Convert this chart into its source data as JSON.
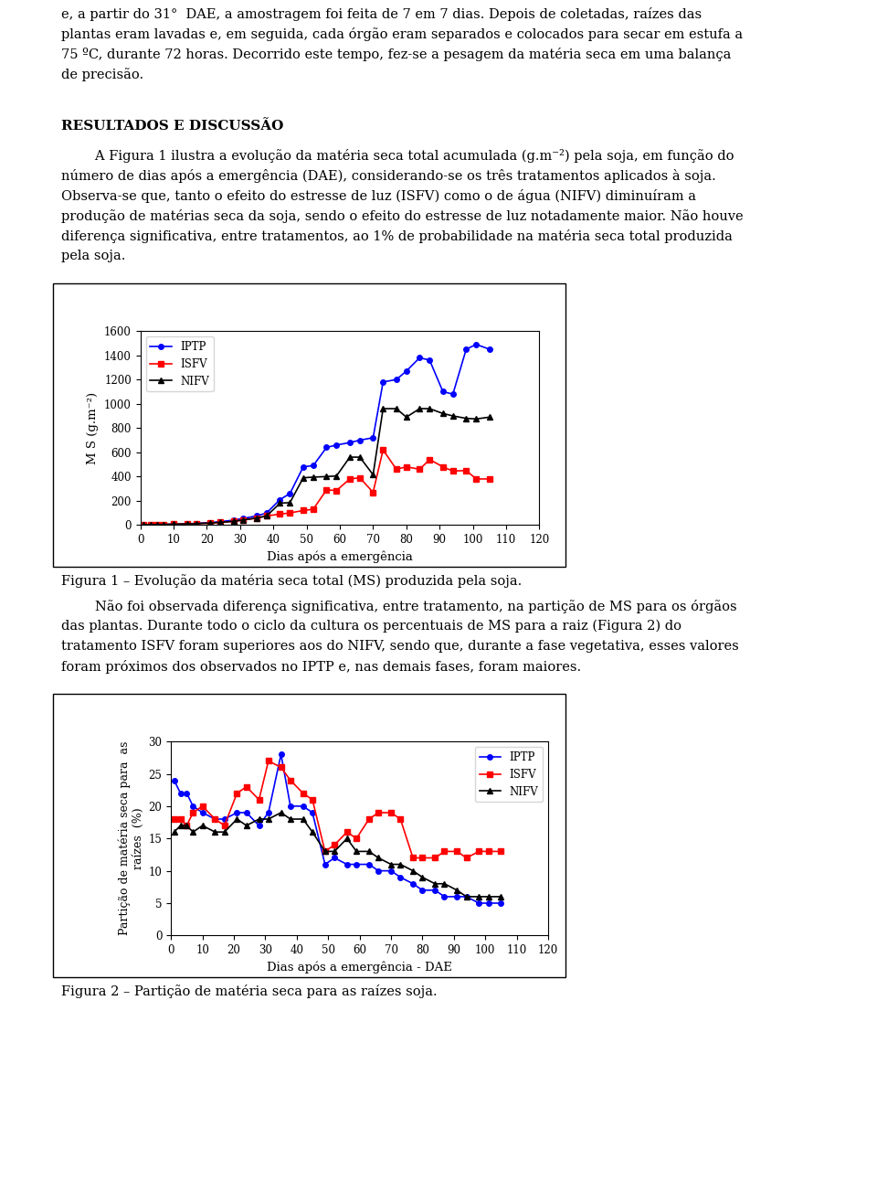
{
  "fig_width": 9.6,
  "fig_height": 13.04,
  "dpi": 100,
  "text_top": [
    "e, a partir do 31°  DAE, a amostragem foi feita de 7 em 7 dias. Depois de coletadas, raízes das",
    "plantas eram lavadas e, em seguida, cada órgão eram separados e colocados para secar em estufa a",
    "75 ºC, durante 72 horas. Decorrido este tempo, fez-se a pesagem da matéria seca em uma balança",
    "de precisão."
  ],
  "heading": "RESULTADOS E DISCUSSÃO",
  "para1": [
    "        A Figura 1 ilustra a evolução da matéria seca total acumulada (g.m⁻²) pela soja, em função do",
    "número de dias após a emergência (DAE), considerando-se os três tratamentos aplicados à soja.",
    "Observa-se que, tanto o efeito do estresse de luz (ISFV) como o de água (NIFV) diminuíram a",
    "produção de matérias seca da soja, sendo o efeito do estresse de luz notadamente maior. Não houve",
    "diferença significativa, entre tratamentos, ao 1% de probabilidade na matéria seca total produzida",
    "pela soja."
  ],
  "fig1_caption": "Figura 1 – Evolução da matéria seca total (MS) produzida pela soja.",
  "para2": [
    "        Não foi observada diferença significativa, entre tratamento, na partição de MS para os órgãos",
    "das plantas. Durante todo o ciclo da cultura os percentuais de MS para a raiz (Figura 2) do",
    "tratamento ISFV foram superiores aos do NIFV, sendo que, durante a fase vegetativa, esses valores",
    "foram próximos dos observados no IPTP e, nas demais fases, foram maiores."
  ],
  "fig2_caption": "Figura 2 – Partição de matéria seca para as raízes soja.",
  "fig1": {
    "xlabel": "Dias após a emergência",
    "ylabel": "M S (g.m⁻²)",
    "xlim": [
      0,
      120
    ],
    "ylim": [
      0,
      1600
    ],
    "xticks": [
      0,
      10,
      20,
      30,
      40,
      50,
      60,
      70,
      80,
      90,
      100,
      110,
      120
    ],
    "yticks": [
      0,
      200,
      400,
      600,
      800,
      1000,
      1200,
      1400,
      1600
    ],
    "IPTP_x": [
      1,
      3,
      5,
      7,
      10,
      14,
      17,
      21,
      24,
      28,
      31,
      35,
      38,
      42,
      45,
      49,
      52,
      56,
      59,
      63,
      66,
      70,
      73,
      77,
      80,
      84,
      87,
      91,
      94,
      98,
      101,
      105
    ],
    "IPTP_y": [
      2,
      3,
      4,
      5,
      7,
      10,
      14,
      20,
      28,
      40,
      55,
      75,
      100,
      210,
      260,
      480,
      490,
      640,
      660,
      680,
      700,
      720,
      1180,
      1200,
      1270,
      1380,
      1360,
      1100,
      1080,
      1450,
      1490,
      1450
    ],
    "ISFV_x": [
      1,
      3,
      5,
      7,
      10,
      14,
      17,
      21,
      24,
      28,
      31,
      35,
      38,
      42,
      45,
      49,
      52,
      56,
      59,
      63,
      66,
      70,
      73,
      77,
      80,
      84,
      87,
      91,
      94,
      98,
      101,
      105
    ],
    "ISFV_y": [
      2,
      3,
      4,
      5,
      7,
      9,
      12,
      16,
      22,
      30,
      42,
      58,
      75,
      90,
      100,
      120,
      130,
      290,
      285,
      380,
      390,
      270,
      620,
      460,
      480,
      460,
      540,
      480,
      445,
      450,
      380,
      380
    ],
    "NIFV_x": [
      1,
      3,
      5,
      7,
      10,
      14,
      17,
      21,
      24,
      28,
      31,
      35,
      38,
      42,
      45,
      49,
      52,
      56,
      59,
      63,
      66,
      70,
      73,
      77,
      80,
      84,
      87,
      91,
      94,
      98,
      101,
      105
    ],
    "NIFV_y": [
      2,
      3,
      4,
      5,
      7,
      9,
      12,
      16,
      22,
      30,
      42,
      58,
      75,
      180,
      185,
      390,
      395,
      400,
      405,
      560,
      560,
      415,
      960,
      960,
      890,
      960,
      960,
      920,
      900,
      880,
      875,
      890
    ],
    "IPTP_color": "#0000FF",
    "ISFV_color": "#FF0000",
    "NIFV_color": "#000000"
  },
  "fig2": {
    "xlabel": "Dias após a emergência - DAE",
    "ylabel": "Partição de matéria seca para  as\nraízes  (%)",
    "xlim": [
      0,
      120
    ],
    "ylim": [
      0,
      30
    ],
    "xticks": [
      0,
      10,
      20,
      30,
      40,
      50,
      60,
      70,
      80,
      90,
      100,
      110,
      120
    ],
    "yticks": [
      0,
      5,
      10,
      15,
      20,
      25,
      30
    ],
    "IPTP_x": [
      1,
      3,
      5,
      7,
      10,
      14,
      17,
      21,
      24,
      28,
      31,
      35,
      38,
      42,
      45,
      49,
      52,
      56,
      59,
      63,
      66,
      70,
      73,
      77,
      80,
      84,
      87,
      91,
      94,
      98,
      101,
      105
    ],
    "IPTP_y": [
      24,
      22,
      22,
      20,
      19,
      18,
      18,
      19,
      19,
      17,
      19,
      28,
      20,
      20,
      19,
      11,
      12,
      11,
      11,
      11,
      10,
      10,
      9,
      8,
      7,
      7,
      6,
      6,
      6,
      5,
      5,
      5
    ],
    "ISFV_x": [
      1,
      3,
      5,
      7,
      10,
      14,
      17,
      21,
      24,
      28,
      31,
      35,
      38,
      42,
      45,
      49,
      52,
      56,
      59,
      63,
      66,
      70,
      73,
      77,
      80,
      84,
      87,
      91,
      94,
      98,
      101,
      105
    ],
    "ISFV_y": [
      18,
      18,
      17,
      19,
      20,
      18,
      17,
      22,
      23,
      21,
      27,
      26,
      24,
      22,
      21,
      13,
      14,
      16,
      15,
      18,
      19,
      19,
      18,
      12,
      12,
      12,
      13,
      13,
      12,
      13,
      13,
      13
    ],
    "NIFV_x": [
      1,
      3,
      5,
      7,
      10,
      14,
      17,
      21,
      24,
      28,
      31,
      35,
      38,
      42,
      45,
      49,
      52,
      56,
      59,
      63,
      66,
      70,
      73,
      77,
      80,
      84,
      87,
      91,
      94,
      98,
      101,
      105
    ],
    "NIFV_y": [
      16,
      17,
      17,
      16,
      17,
      16,
      16,
      18,
      17,
      18,
      18,
      19,
      18,
      18,
      16,
      13,
      13,
      15,
      13,
      13,
      12,
      11,
      11,
      10,
      9,
      8,
      8,
      7,
      6,
      6,
      6,
      6
    ],
    "IPTP_color": "#0000FF",
    "ISFV_color": "#FF0000",
    "NIFV_color": "#000000"
  }
}
